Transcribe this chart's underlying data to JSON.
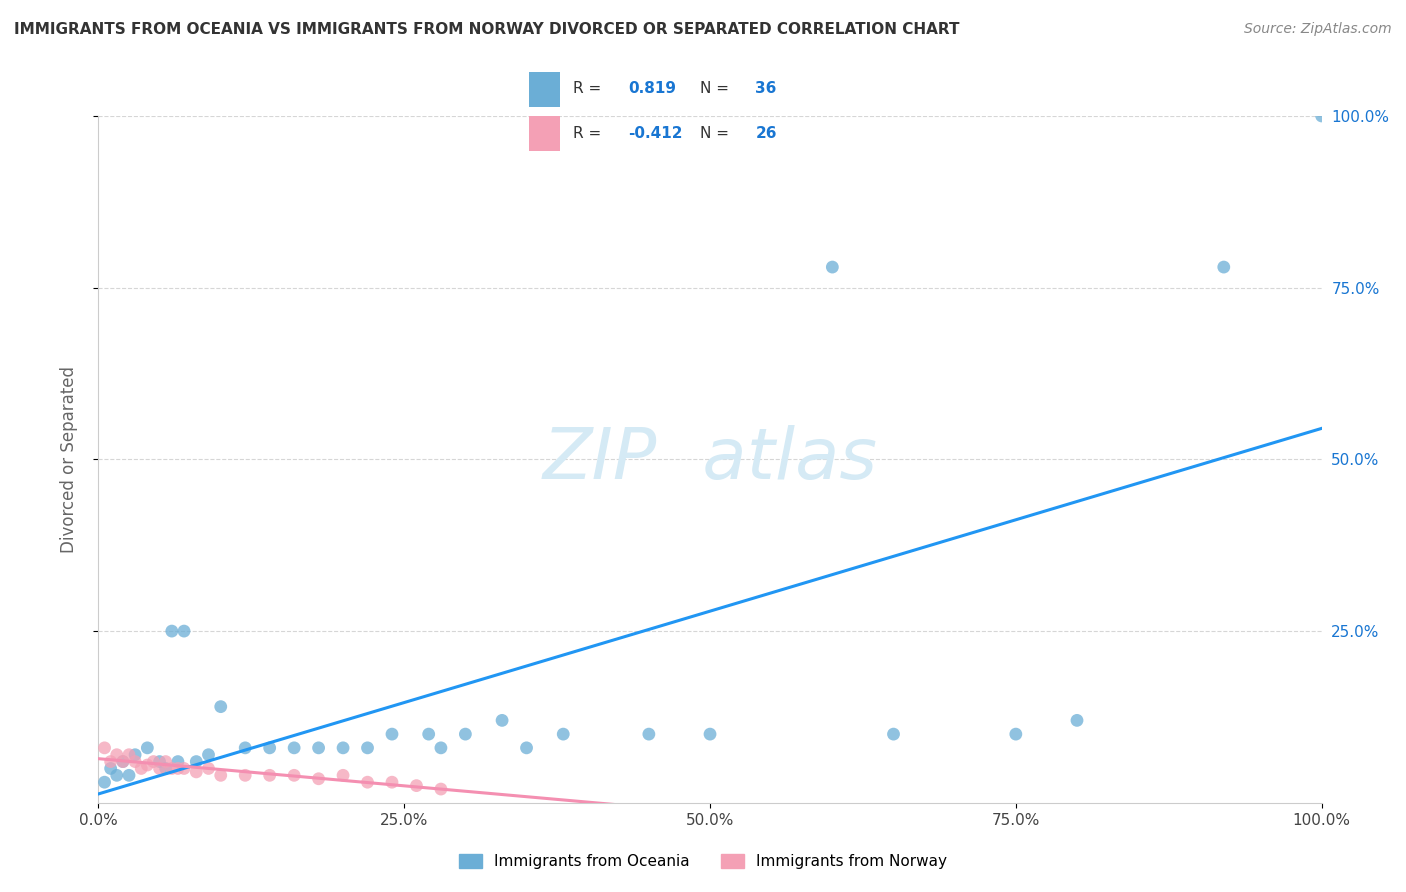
{
  "title": "IMMIGRANTS FROM OCEANIA VS IMMIGRANTS FROM NORWAY DIVORCED OR SEPARATED CORRELATION CHART",
  "source": "Source: ZipAtlas.com",
  "ylabel": "Divorced or Separated",
  "legend_label1": "Immigrants from Oceania",
  "legend_label2": "Immigrants from Norway",
  "R1": 0.819,
  "N1": 36,
  "R2": -0.412,
  "N2": 26,
  "color_blue": "#6baed6",
  "color_pink": "#f4a0b5",
  "color_blue_line": "#2196F3",
  "color_pink_line": "#f48fb1",
  "color_blue_text": "#1976D2",
  "watermark_color": "#d5eaf5",
  "background_color": "#ffffff",
  "grid_color": "#cccccc",
  "xlim": [
    0,
    1.0
  ],
  "ylim": [
    0,
    1.0
  ],
  "xtick_positions": [
    0,
    0.25,
    0.5,
    0.75,
    1.0
  ],
  "xtick_labels": [
    "0.0%",
    "25.0%",
    "50.0%",
    "75.0%",
    "100.0%"
  ],
  "ytick_positions": [
    0.25,
    0.5,
    0.75,
    1.0
  ],
  "ytick_labels": [
    "25.0%",
    "50.0%",
    "75.0%",
    "100.0%"
  ],
  "blue_x": [
    0.005,
    0.01,
    0.015,
    0.02,
    0.025,
    0.03,
    0.04,
    0.05,
    0.06,
    0.07,
    0.08,
    0.09,
    0.1,
    0.12,
    0.14,
    0.16,
    0.18,
    0.2,
    0.22,
    0.24,
    0.27,
    0.3,
    0.33,
    0.38,
    0.45,
    0.5,
    0.6,
    0.65,
    0.75,
    0.8,
    0.92,
    1.0,
    0.055,
    0.065,
    0.35,
    0.28
  ],
  "blue_y": [
    0.03,
    0.05,
    0.04,
    0.06,
    0.04,
    0.07,
    0.08,
    0.06,
    0.25,
    0.25,
    0.06,
    0.07,
    0.14,
    0.08,
    0.08,
    0.08,
    0.08,
    0.08,
    0.08,
    0.1,
    0.1,
    0.1,
    0.12,
    0.1,
    0.1,
    0.1,
    0.78,
    0.1,
    0.1,
    0.12,
    0.78,
    1.0,
    0.05,
    0.06,
    0.08,
    0.08
  ],
  "pink_x": [
    0.005,
    0.01,
    0.015,
    0.02,
    0.025,
    0.03,
    0.035,
    0.04,
    0.045,
    0.05,
    0.055,
    0.06,
    0.065,
    0.07,
    0.08,
    0.09,
    0.1,
    0.12,
    0.14,
    0.16,
    0.18,
    0.2,
    0.22,
    0.24,
    0.26,
    0.28
  ],
  "pink_y": [
    0.08,
    0.06,
    0.07,
    0.06,
    0.07,
    0.06,
    0.05,
    0.055,
    0.06,
    0.05,
    0.06,
    0.05,
    0.05,
    0.05,
    0.045,
    0.05,
    0.04,
    0.04,
    0.04,
    0.04,
    0.035,
    0.04,
    0.03,
    0.03,
    0.025,
    0.02
  ]
}
